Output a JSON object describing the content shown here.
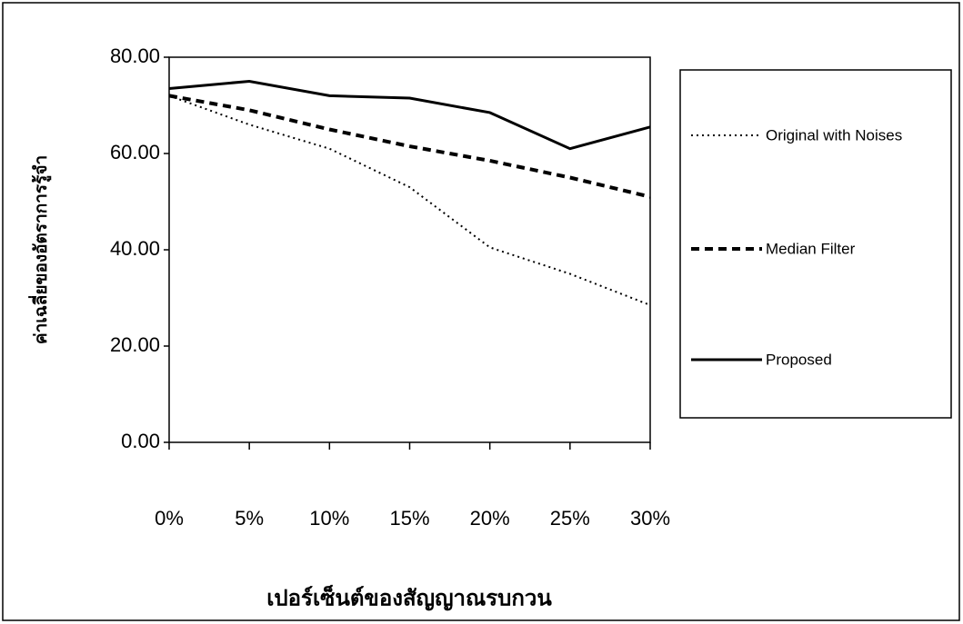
{
  "chart_data": {
    "type": "line",
    "x_label": "เปอร์เซ็นต์ของสัญญาณรบกวน",
    "y_label": "ค่าเฉลี่ยของอัตราการรู้จำ",
    "categories": [
      "0%",
      "5%",
      "10%",
      "15%",
      "20%",
      "25%",
      "30%"
    ],
    "series": [
      {
        "name": "Original with Noises",
        "color": "#000000",
        "dash": "dotted",
        "values": [
          72,
          66,
          61,
          53,
          40.5,
          35,
          28.5
        ]
      },
      {
        "name": "Median Filter",
        "color": "#000000",
        "dash": "dashed",
        "values": [
          72,
          69,
          65,
          61.5,
          58.5,
          55,
          51
        ]
      },
      {
        "name": "Proposed",
        "color": "#000000",
        "dash": "solid",
        "values": [
          73.5,
          75,
          72,
          71.5,
          68.5,
          61,
          65.5
        ]
      }
    ],
    "ylim": [
      0,
      80
    ],
    "yticks": [
      {
        "value": 0,
        "label": "0.00"
      },
      {
        "value": 20,
        "label": "20.00"
      },
      {
        "value": 40,
        "label": "40.00"
      },
      {
        "value": 60,
        "label": "60.00"
      },
      {
        "value": 80,
        "label": "80.00"
      }
    ],
    "grid": false,
    "legend": "right"
  }
}
